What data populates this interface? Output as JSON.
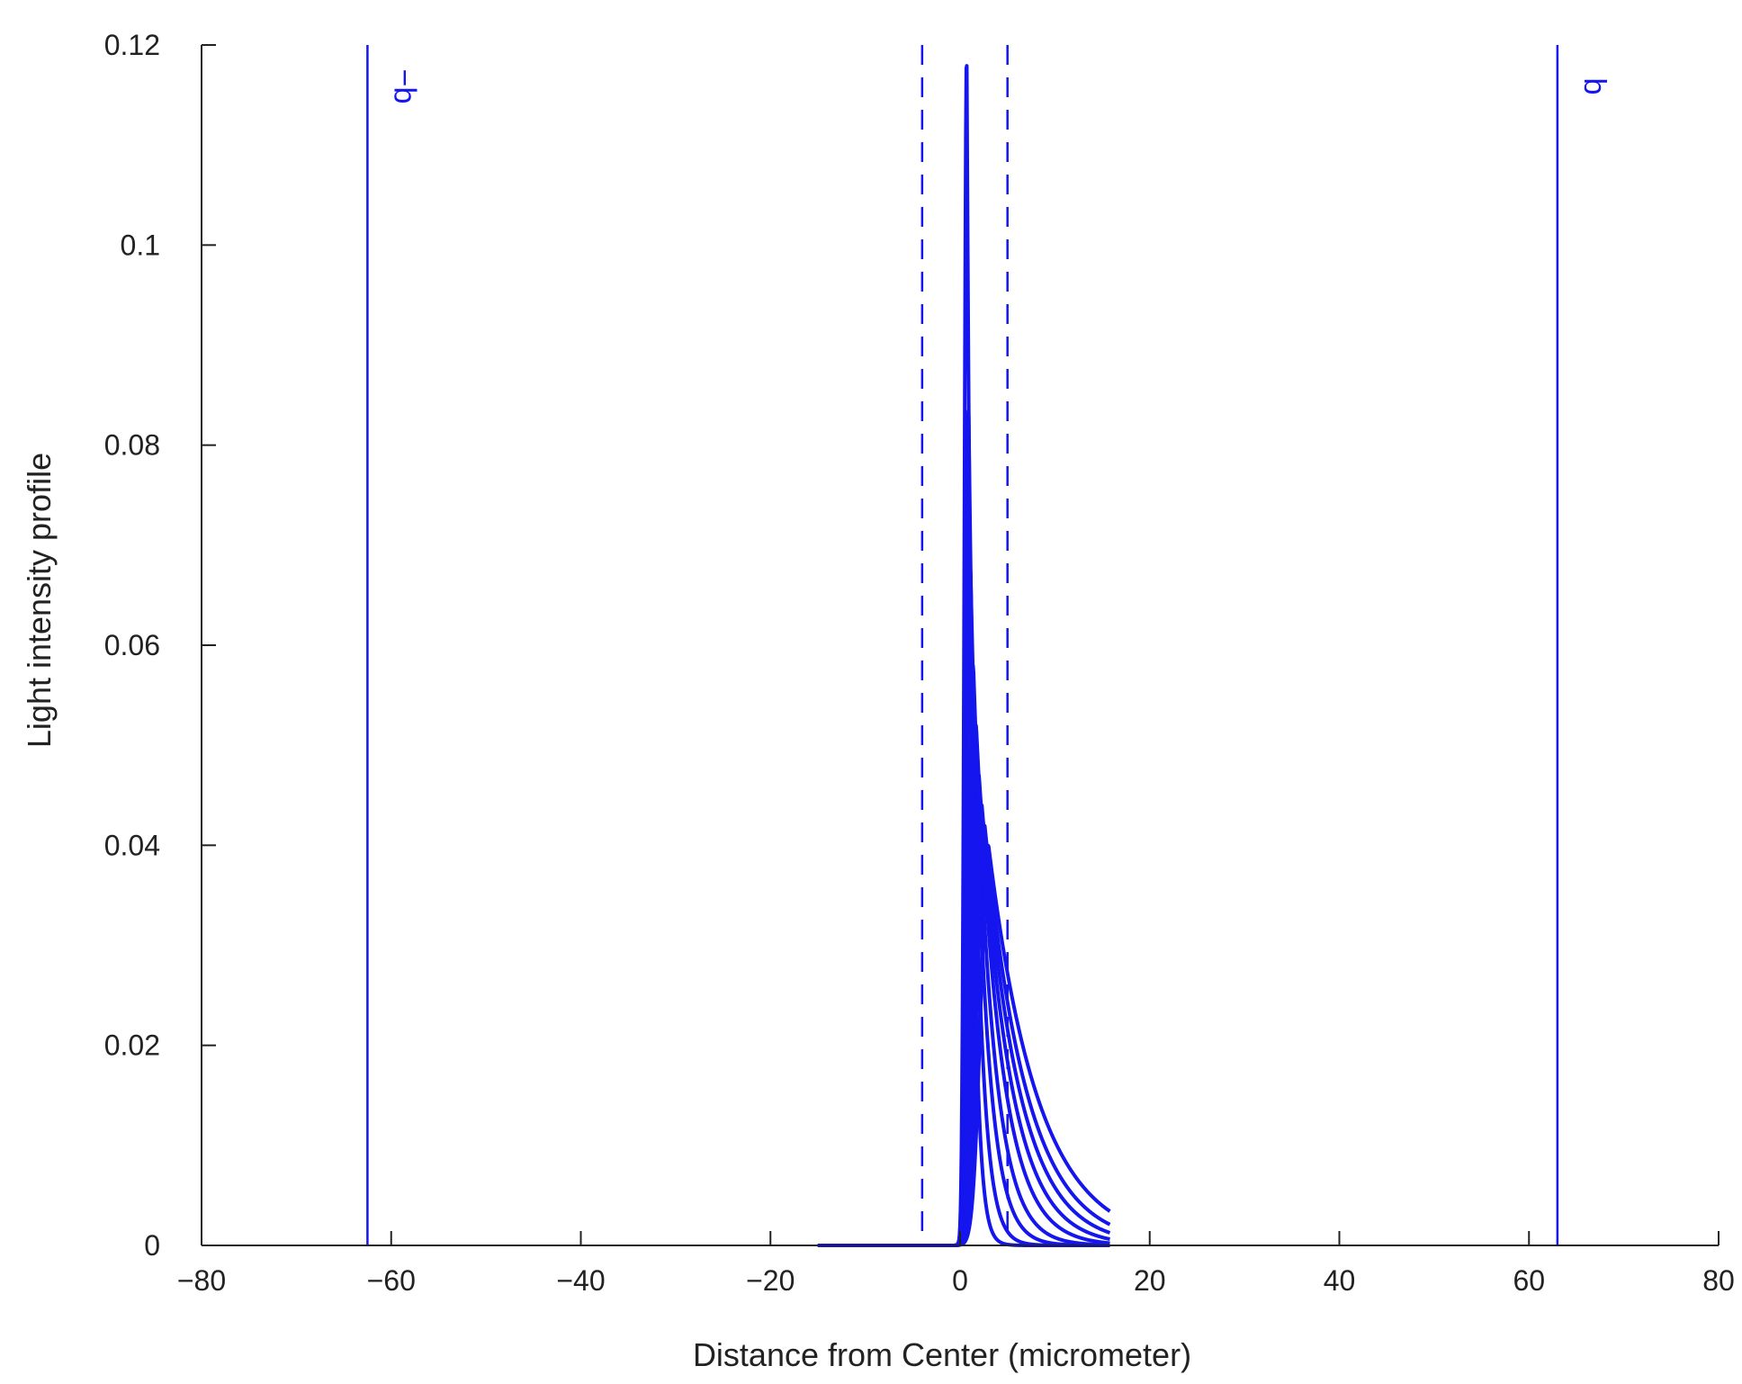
{
  "chart_data": {
    "type": "line",
    "title": "",
    "xlabel": "Distance from Center (micrometer)",
    "ylabel": "Light intensity profile",
    "xlim": [
      -80,
      80
    ],
    "ylim": [
      0,
      0.12
    ],
    "x_ticks": [
      -80,
      -60,
      -40,
      -20,
      0,
      20,
      40,
      60,
      80
    ],
    "x_tick_labels": [
      "−80",
      "−60",
      "−40",
      "−20",
      "0",
      "20",
      "40",
      "60",
      "80"
    ],
    "y_ticks": [
      0,
      0.02,
      0.04,
      0.06,
      0.08,
      0.1,
      0.12
    ],
    "y_tick_labels": [
      "0",
      "0.02",
      "0.04",
      "0.06",
      "0.08",
      "0.1",
      "0.12"
    ],
    "grid": false,
    "legend": "none",
    "line_color": "#1515ee",
    "curve_x_range": [
      -15,
      15.8
    ],
    "series": [
      {
        "peak_x": 0.7,
        "peak_y": 0.1195,
        "left_width": 0.35,
        "right_decay": 0.6
      },
      {
        "peak_x": 0.9,
        "peak_y": 0.084,
        "left_width": 0.45,
        "right_decay": 1.0
      },
      {
        "peak_x": 1.1,
        "peak_y": 0.068,
        "left_width": 0.55,
        "right_decay": 1.5
      },
      {
        "peak_x": 1.4,
        "peak_y": 0.058,
        "left_width": 0.65,
        "right_decay": 2.0
      },
      {
        "peak_x": 1.7,
        "peak_y": 0.052,
        "left_width": 0.75,
        "right_decay": 2.6
      },
      {
        "peak_x": 2.0,
        "peak_y": 0.047,
        "left_width": 0.85,
        "right_decay": 3.2
      },
      {
        "peak_x": 2.3,
        "peak_y": 0.044,
        "left_width": 0.95,
        "right_decay": 3.8
      },
      {
        "peak_x": 2.6,
        "peak_y": 0.042,
        "left_width": 1.05,
        "right_decay": 4.4
      },
      {
        "peak_x": 3.0,
        "peak_y": 0.04,
        "left_width": 1.15,
        "right_decay": 5.2
      }
    ],
    "vertical_lines": [
      {
        "x": -62.5,
        "style": "solid",
        "label": "−b"
      },
      {
        "x": 63.0,
        "style": "solid",
        "label": "b"
      },
      {
        "x": -4.0,
        "style": "dashed",
        "label": ""
      },
      {
        "x": 5.0,
        "style": "dashed",
        "label": ""
      }
    ]
  }
}
